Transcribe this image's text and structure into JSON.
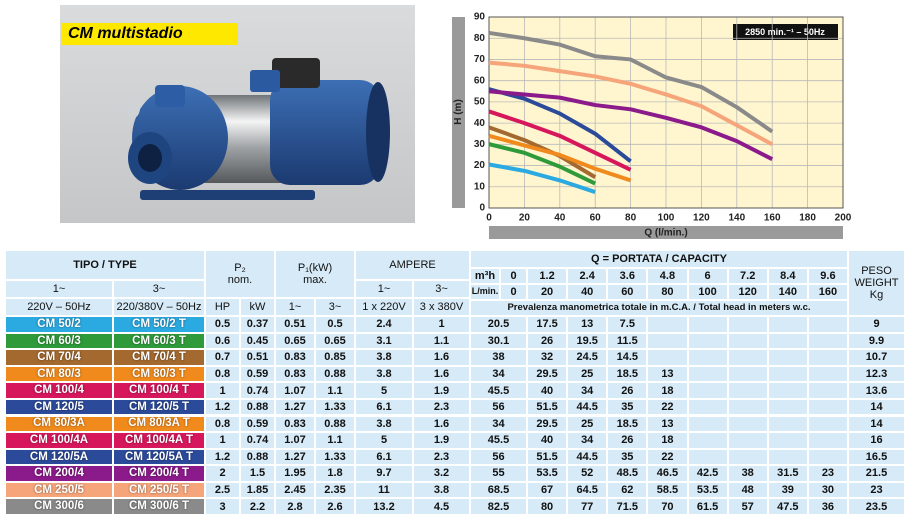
{
  "header": {
    "title": "CM multistadio"
  },
  "chart_data": {
    "type": "line",
    "x_label": "Q (l/min.)",
    "y_label": "H (m)",
    "annotation": "2850 min.⁻¹ – 50Hz",
    "x": [
      0,
      20,
      40,
      60,
      80,
      100,
      120,
      140,
      160
    ],
    "xlim": [
      0,
      200
    ],
    "xticks": [
      0,
      20,
      40,
      60,
      80,
      100,
      120,
      140,
      160,
      180,
      200
    ],
    "ylim": [
      0,
      90
    ],
    "yticks": [
      0,
      10,
      20,
      30,
      40,
      50,
      60,
      70,
      80,
      90
    ],
    "grid": true,
    "series": [
      {
        "name": "CM 50/2",
        "color": "#2ba9e1",
        "values": [
          20.5,
          17.5,
          13,
          7.5,
          null,
          null,
          null,
          null,
          null
        ]
      },
      {
        "name": "CM 60/3",
        "color": "#2e9a3a",
        "values": [
          30.1,
          26,
          19.5,
          11.5,
          null,
          null,
          null,
          null,
          null
        ]
      },
      {
        "name": "CM 70/4",
        "color": "#a3692f",
        "values": [
          38,
          32,
          24.5,
          14.5,
          null,
          null,
          null,
          null,
          null
        ]
      },
      {
        "name": "CM 80/3",
        "color": "#f08a1c",
        "values": [
          34,
          29.5,
          25,
          18.5,
          13,
          null,
          null,
          null,
          null
        ]
      },
      {
        "name": "CM 100/4",
        "color": "#d6175c",
        "values": [
          45.5,
          40,
          34,
          26,
          18,
          null,
          null,
          null,
          null
        ]
      },
      {
        "name": "CM 120/5",
        "color": "#2b4a9a",
        "values": [
          56,
          51.5,
          44.5,
          35,
          22,
          null,
          null,
          null,
          null
        ]
      },
      {
        "name": "CM 200/4",
        "color": "#8b1a8b",
        "values": [
          55,
          53.5,
          52,
          48.5,
          46.5,
          42.5,
          38,
          31.5,
          23
        ]
      },
      {
        "name": "CM 250/5",
        "color": "#f6a57a",
        "values": [
          68.5,
          67,
          64.5,
          62,
          58.5,
          53.5,
          48,
          39,
          30
        ]
      },
      {
        "name": "CM 300/6",
        "color": "#8a8a8a",
        "values": [
          82.5,
          80,
          77,
          71.5,
          70,
          61.5,
          57,
          47.5,
          36
        ]
      }
    ]
  },
  "table": {
    "header": {
      "type": "TIPO / TYPE",
      "phase1": "1~",
      "phase3": "3~",
      "volt1": "220V – 50Hz",
      "volt3": "220/380V – 50Hz",
      "p2": [
        "P₂",
        "nom."
      ],
      "hp": "HP",
      "kw": "kW",
      "p1": [
        "P₁(kW)",
        "max."
      ],
      "p1_1": "1~",
      "p1_3": "3~",
      "ampere": "AMPERE",
      "a1": "1~",
      "a3": "3~",
      "a1v": "1 x 220V",
      "a3v": "3 x 380V",
      "q": "Q = PORTATA / CAPACITY",
      "m3h": "m³h",
      "lmin": "L/min.",
      "m3h_values": [
        0,
        1.2,
        2.4,
        3.6,
        4.8,
        6,
        7.2,
        8.4,
        9.6
      ],
      "lmin_values": [
        0,
        20,
        40,
        60,
        80,
        100,
        120,
        140,
        160
      ],
      "head_note": "Prevalenza manometrica totale in m.C.A. / Total head in meters w.c.",
      "weight": [
        "PESO",
        "WEIGHT",
        "Kg"
      ]
    },
    "rows": [
      {
        "color": "#2ba9e1",
        "cells": [
          "CM 50/2",
          "CM 50/2 T",
          0.5,
          0.37,
          0.51,
          0.5,
          2.4,
          1,
          20.5,
          17.5,
          13,
          7.5,
          null,
          null,
          null,
          null,
          null,
          9
        ]
      },
      {
        "color": "#2e9a3a",
        "cells": [
          "CM 60/3",
          "CM 60/3 T",
          0.6,
          0.45,
          0.65,
          0.65,
          3.1,
          1.1,
          30.1,
          26,
          19.5,
          11.5,
          null,
          null,
          null,
          null,
          null,
          9.9
        ]
      },
      {
        "color": "#a3692f",
        "cells": [
          "CM 70/4",
          "CM 70/4 T",
          0.7,
          0.51,
          0.83,
          0.85,
          3.8,
          1.6,
          38,
          32,
          24.5,
          14.5,
          null,
          null,
          null,
          null,
          null,
          10.7
        ]
      },
      {
        "color": "#f08a1c",
        "cells": [
          "CM 80/3",
          "CM 80/3 T",
          0.8,
          0.59,
          0.83,
          0.88,
          3.8,
          1.6,
          34,
          29.5,
          25,
          18.5,
          13,
          null,
          null,
          null,
          null,
          12.3
        ]
      },
      {
        "color": "#d6175c",
        "cells": [
          "CM 100/4",
          "CM 100/4 T",
          1,
          0.74,
          1.07,
          1.1,
          5,
          1.9,
          45.5,
          40,
          34,
          26,
          18,
          null,
          null,
          null,
          null,
          13.6
        ]
      },
      {
        "color": "#2b4a9a",
        "cells": [
          "CM 120/5",
          "CM 120/5 T",
          1.2,
          0.88,
          1.27,
          1.33,
          6.1,
          2.3,
          56,
          51.5,
          44.5,
          35,
          22,
          null,
          null,
          null,
          null,
          14
        ]
      },
      {
        "color": "#f08a1c",
        "cells": [
          "CM 80/3A",
          "CM 80/3A T",
          0.8,
          0.59,
          0.83,
          0.88,
          3.8,
          1.6,
          34,
          29.5,
          25,
          18.5,
          13,
          null,
          null,
          null,
          null,
          14
        ]
      },
      {
        "color": "#d6175c",
        "cells": [
          "CM 100/4A",
          "CM 100/4A T",
          1,
          0.74,
          1.07,
          1.1,
          5,
          1.9,
          45.5,
          40,
          34,
          26,
          18,
          null,
          null,
          null,
          null,
          16
        ]
      },
      {
        "color": "#2b4a9a",
        "cells": [
          "CM 120/5A",
          "CM 120/5A T",
          1.2,
          0.88,
          1.27,
          1.33,
          6.1,
          2.3,
          56,
          51.5,
          44.5,
          35,
          22,
          null,
          null,
          null,
          null,
          16.5
        ]
      },
      {
        "color": "#8b1a8b",
        "cells": [
          "CM 200/4",
          "CM 200/4 T",
          2,
          1.5,
          1.95,
          1.8,
          9.7,
          3.2,
          55,
          53.5,
          52,
          48.5,
          46.5,
          42.5,
          38,
          31.5,
          23,
          21.5
        ]
      },
      {
        "color": "#f6a57a",
        "cells": [
          "CM 250/5",
          "CM 250/5 T",
          2.5,
          1.85,
          2.45,
          2.35,
          11,
          3.8,
          68.5,
          67,
          64.5,
          62,
          58.5,
          53.5,
          48,
          39,
          30,
          23
        ]
      },
      {
        "color": "#8a8a8a",
        "cells": [
          "CM 300/6",
          "CM 300/6 T",
          3,
          2.2,
          2.8,
          2.6,
          13.2,
          4.5,
          82.5,
          80,
          77,
          71.5,
          70,
          61.5,
          57,
          47.5,
          36,
          23.5
        ]
      }
    ]
  }
}
